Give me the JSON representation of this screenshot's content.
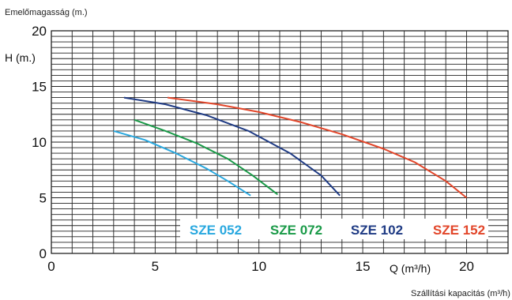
{
  "chart_data": {
    "type": "line",
    "top_label": "Emelőmagasság (m.)",
    "ylabel": "H (m.)",
    "x_unit_label": "Q (m³/h)",
    "bottom_label": "Szállítási kapacitás (m³/h)",
    "xlim": [
      0,
      22
    ],
    "ylim": [
      0,
      20
    ],
    "x_ticks": [
      "0",
      "5",
      "10",
      "15",
      "20"
    ],
    "y_ticks": [
      "0",
      "5",
      "10",
      "15",
      "20"
    ],
    "grid": true,
    "legend_position": "bottom-right",
    "series": [
      {
        "name": "SZE 052",
        "color": "#29a8df",
        "x": [
          3.0,
          4.5,
          6.0,
          7.5,
          8.5,
          9.6
        ],
        "y": [
          11.0,
          10.2,
          9.0,
          7.6,
          6.5,
          5.2
        ]
      },
      {
        "name": "SZE 072",
        "color": "#1a9a48",
        "x": [
          4.0,
          5.5,
          7.0,
          8.5,
          9.7,
          10.9
        ],
        "y": [
          12.0,
          11.0,
          9.9,
          8.5,
          7.0,
          5.3
        ]
      },
      {
        "name": "SZE 102",
        "color": "#1f3b84",
        "x": [
          3.5,
          5.5,
          7.5,
          9.5,
          11.5,
          13.0,
          13.9
        ],
        "y": [
          14.0,
          13.4,
          12.4,
          11.0,
          9.0,
          7.0,
          5.2
        ]
      },
      {
        "name": "SZE 152",
        "color": "#e2462a",
        "x": [
          5.6,
          8.0,
          10.0,
          12.0,
          14.0,
          16.0,
          17.5,
          19.0,
          20.0
        ],
        "y": [
          14.0,
          13.4,
          12.7,
          11.8,
          10.7,
          9.4,
          8.2,
          6.5,
          5.0
        ]
      }
    ]
  }
}
